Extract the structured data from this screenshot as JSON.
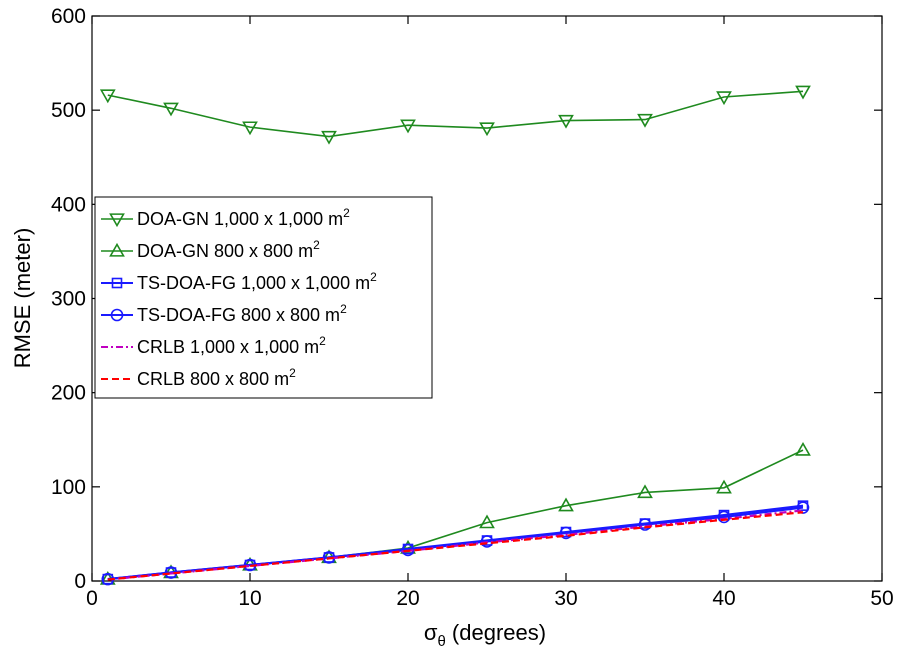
{
  "chart_data": {
    "type": "line",
    "xlabel": {
      "main": "σ",
      "sub": "θ",
      "rest": " (degrees)"
    },
    "ylabel": "RMSE (meter)",
    "xlim": [
      0,
      50
    ],
    "ylim": [
      0,
      600
    ],
    "xticks": [
      0,
      10,
      20,
      30,
      40,
      50
    ],
    "yticks": [
      0,
      100,
      200,
      300,
      400,
      500,
      600
    ],
    "grid": false,
    "legend_position": "left",
    "x": [
      1,
      5,
      10,
      15,
      20,
      25,
      30,
      35,
      40,
      45
    ],
    "series": [
      {
        "name": "DOA-GN 1,000 x 1,000 m",
        "sup": "2",
        "color": "#1f8a1f",
        "line": "solid",
        "marker": "triangle-down",
        "values": [
          516,
          502,
          482,
          472,
          484,
          481,
          489,
          490,
          514,
          520
        ]
      },
      {
        "name": "DOA-GN 800 x 800 m",
        "sup": "2",
        "color": "#1f8a1f",
        "line": "solid",
        "marker": "triangle-up",
        "values": [
          2,
          9,
          17,
          25,
          35,
          62,
          80,
          94,
          99,
          139
        ]
      },
      {
        "name": "TS-DOA-FG 1,000 x 1,000 m",
        "sup": "2",
        "color": "#1a1aff",
        "line": "solid",
        "marker": "square",
        "values": [
          2,
          9,
          17,
          25,
          34,
          43,
          52,
          61,
          70,
          80
        ]
      },
      {
        "name": "TS-DOA-FG 800 x 800 m",
        "sup": "2",
        "color": "#1a1aff",
        "line": "solid",
        "marker": "circle",
        "values": [
          2,
          9,
          17,
          25,
          33,
          42,
          51,
          60,
          68,
          78
        ]
      },
      {
        "name": "CRLB 1,000 x 1,000 m",
        "sup": "2",
        "color": "#c000c0",
        "line": "dashdot",
        "marker": "none",
        "values": [
          1.5,
          8,
          16,
          24,
          32,
          41,
          49,
          58,
          66,
          75
        ]
      },
      {
        "name": "CRLB 800 x 800 m",
        "sup": "2",
        "color": "#ff0000",
        "line": "dashed",
        "marker": "none",
        "values": [
          1.5,
          8,
          16,
          24,
          32,
          40,
          48,
          57,
          65,
          73
        ]
      }
    ]
  }
}
